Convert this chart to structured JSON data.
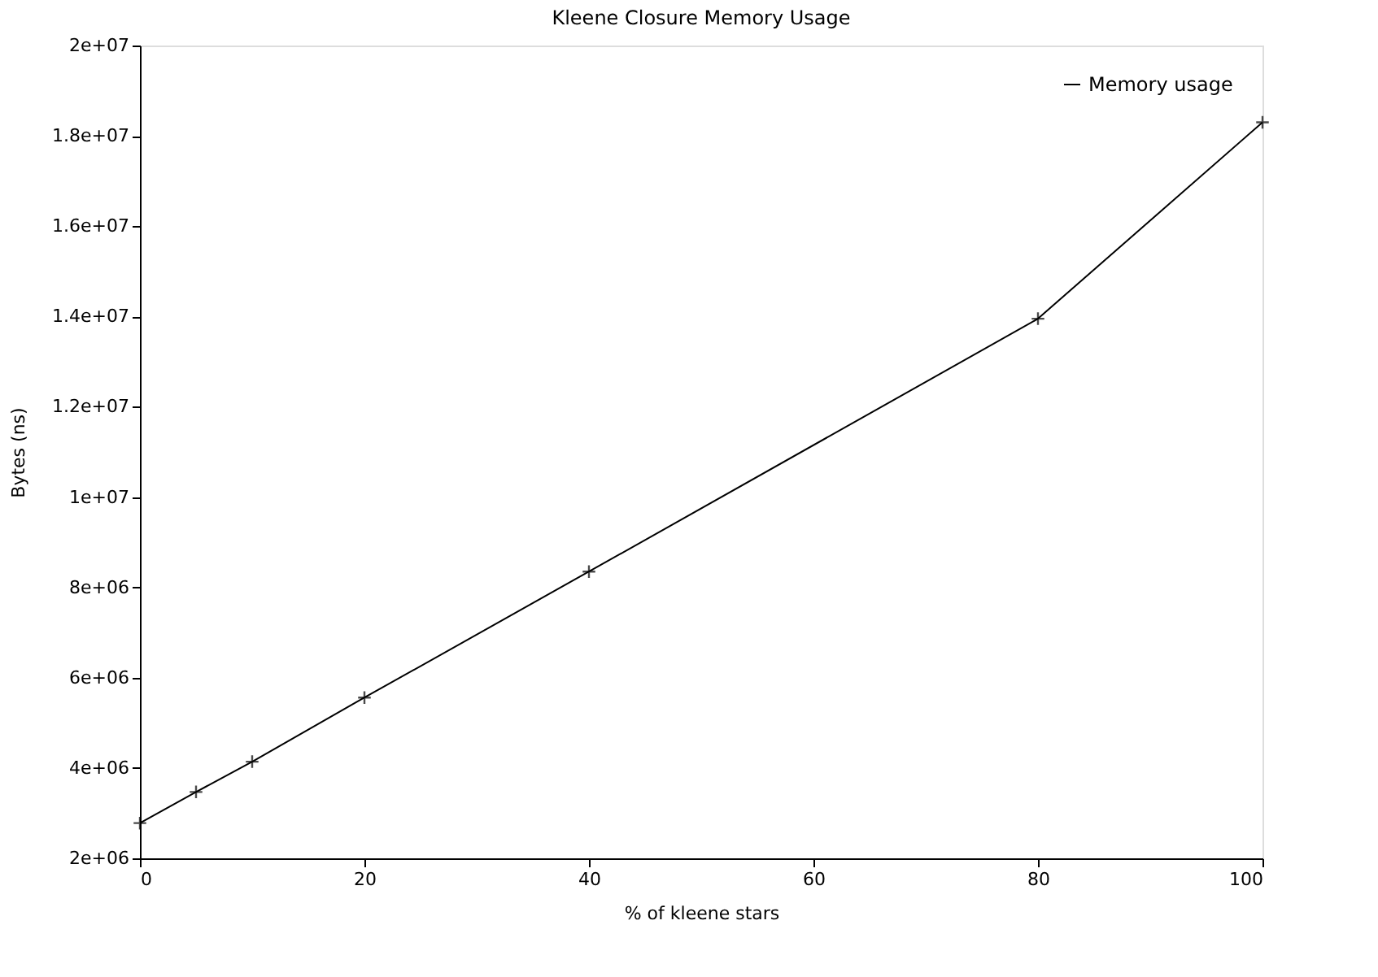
{
  "chart_data": {
    "type": "line",
    "title": "Kleene Closure Memory Usage",
    "xlabel": "% of kleene stars",
    "ylabel": "Bytes (ns)",
    "x": [
      0,
      5,
      10,
      20,
      40,
      80,
      100
    ],
    "series": [
      {
        "name": "Memory usage",
        "color": "#000000",
        "values": [
          2780000,
          3470000,
          4140000,
          5560000,
          8350000,
          13950000,
          18300000
        ]
      }
    ],
    "xlim": [
      0,
      100
    ],
    "xticks": [
      0,
      20,
      40,
      60,
      80,
      100
    ],
    "ylim": [
      2000000,
      20000000
    ],
    "yticks": [
      {
        "value": 2000000,
        "label": "2e+06"
      },
      {
        "value": 4000000,
        "label": "4e+06"
      },
      {
        "value": 6000000,
        "label": "6e+06"
      },
      {
        "value": 8000000,
        "label": "8e+06"
      },
      {
        "value": 10000000,
        "label": "1e+07"
      },
      {
        "value": 12000000,
        "label": "1.2e+07"
      },
      {
        "value": 14000000,
        "label": "1.4e+07"
      },
      {
        "value": 16000000,
        "label": "1.6e+07"
      },
      {
        "value": 18000000,
        "label": "1.8e+07"
      },
      {
        "value": 20000000,
        "label": "2e+07"
      }
    ],
    "grid": false,
    "legend": "top right",
    "marker": "cross",
    "line_style": "solid"
  }
}
